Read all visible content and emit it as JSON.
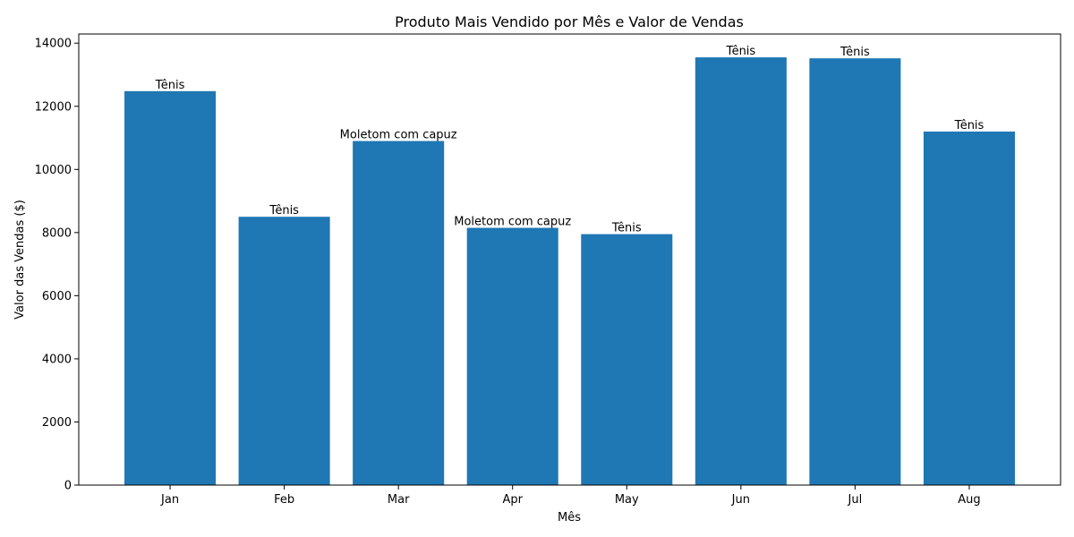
{
  "chart_data": {
    "type": "bar",
    "title": "Produto Mais Vendido por Mês e Valor de Vendas",
    "xlabel": "Mês",
    "ylabel": "Valor das Vendas ($)",
    "categories": [
      "Jan",
      "Feb",
      "Mar",
      "Apr",
      "May",
      "Jun",
      "Jul",
      "Aug"
    ],
    "values": [
      12480,
      8500,
      10900,
      8150,
      7950,
      13550,
      13520,
      11200
    ],
    "bar_labels": [
      "Tênis",
      "Tênis",
      "Moletom com capuz",
      "Moletom com capuz",
      "Tênis",
      "Tênis",
      "Tênis",
      "Tênis"
    ],
    "ylim": [
      0,
      14290
    ],
    "yticks": [
      0,
      2000,
      4000,
      6000,
      8000,
      10000,
      12000,
      14000
    ],
    "grid": false,
    "bar_color": "#1f77b4"
  }
}
